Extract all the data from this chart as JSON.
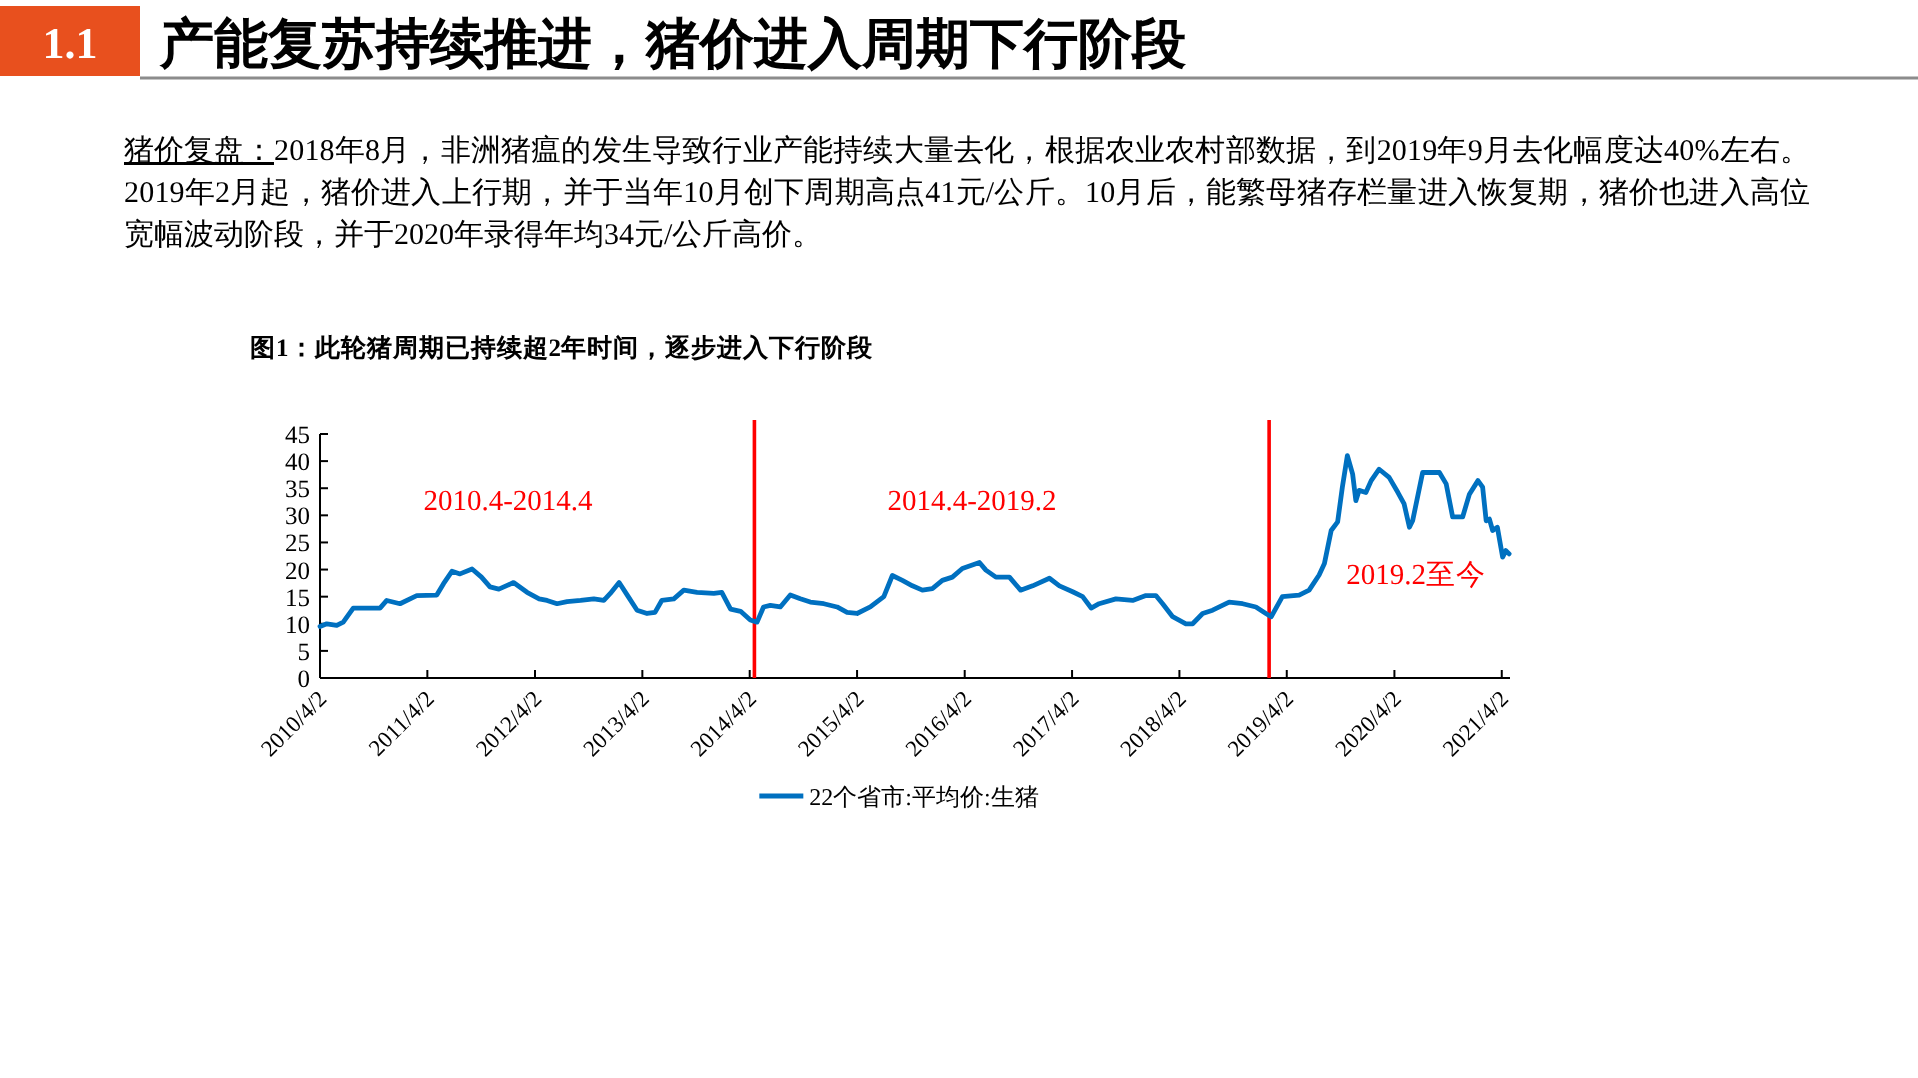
{
  "chart_data": {
    "type": "line",
    "title": "产能复苏持续推进，猪价进入周期下行阶段",
    "subtitle": "图1：此轮猪周期已持续超2年时间，逐步进入下行阶段",
    "annotations": [
      "1.1",
      "猪价复盘：2018年8月，非洲猪瘟的发生导致行业产能持续大量去化，根据农业农村部数据，到2019年9月去化幅度达40%左右。2019年2月起，猪价进入上行期，并于当年10月创下周期高点41元/公斤。10月后，能繁母猪存栏量进入恢复期，猪价也进入高位宽幅波动阶段，并于2020年录得年均34元/公斤高价。",
      "2010.4-2014.4",
      "2014.4-2019.2",
      "2019.2至今"
    ],
    "x": [
      "2010-04-02",
      "2010-04-25",
      "2010-05-29",
      "2010-06-20",
      "2010-07-24",
      "2010-10-23",
      "2010-11-15",
      "2010-12-30",
      "2011-02-25",
      "2011-05-04",
      "2011-05-27",
      "2011-06-25",
      "2011-07-22",
      "2011-09-01",
      "2011-10-03",
      "2011-11-01",
      "2011-12-01",
      "2012-01-20",
      "2012-03-06",
      "2012-04-16",
      "2012-05-13",
      "2012-06-16",
      "2012-07-20",
      "2012-09-04",
      "2012-10-19",
      "2012-11-22",
      "2012-12-14",
      "2013-01-13",
      "2013-02-13",
      "2013-03-15",
      "2013-04-18",
      "2013-05-15",
      "2013-06-07",
      "2013-07-18",
      "2013-08-21",
      "2013-10-05",
      "2013-12-01",
      "2013-12-28",
      "2014-01-27",
      "2014-03-02",
      "2014-04-04",
      "2014-04-27",
      "2014-05-19",
      "2014-06-11",
      "2014-07-15",
      "2014-08-18",
      "2014-09-21",
      "2014-10-25",
      "2014-12-10",
      "2015-01-24",
      "2015-02-27",
      "2015-04-02",
      "2015-05-17",
      "2015-07-02",
      "2015-07-31",
      "2015-09-03",
      "2015-10-07",
      "2015-11-10",
      "2015-12-14",
      "2016-01-17",
      "2016-02-20",
      "2016-03-25",
      "2016-05-22",
      "2016-06-13",
      "2016-07-17",
      "2016-09-01",
      "2016-10-09",
      "2016-11-19",
      "2017-01-15",
      "2017-02-18",
      "2017-04-04",
      "2017-05-08",
      "2017-06-06",
      "2017-07-03",
      "2017-08-29",
      "2017-10-25",
      "2017-12-09",
      "2018-01-12",
      "2018-02-04",
      "2018-03-10",
      "2018-04-24",
      "2018-05-17",
      "2018-06-20",
      "2018-07-24",
      "2018-09-18",
      "2018-11-03",
      "2018-12-18",
      "2019-01-21",
      "2019-02-08",
      "2019-03-18",
      "2019-05-14",
      "2019-06-17",
      "2019-07-21",
      "2019-08-08",
      "2019-08-31",
      "2019-09-22",
      "2019-10-08",
      "2019-10-25",
      "2019-11-12",
      "2019-11-23",
      "2019-12-04",
      "2019-12-27",
      "2020-01-14",
      "2020-02-10",
      "2020-03-15",
      "2020-04-14",
      "2020-05-05",
      "2020-05-23",
      "2020-06-03",
      "2020-07-07",
      "2020-09-02",
      "2020-09-25",
      "2020-10-17",
      "2020-11-20",
      "2020-12-13",
      "2021-01-11",
      "2021-01-27",
      "2021-02-08",
      "2021-02-19",
      "2021-03-02",
      "2021-03-18",
      "2021-04-05",
      "2021-04-16",
      "2021-04-27"
    ],
    "series": [
      {
        "name": "22个省市:平均价:生猪",
        "color": "#0070c0",
        "values": [
          9.5,
          10.0,
          9.7,
          10.3,
          12.9,
          12.9,
          14.3,
          13.7,
          15.2,
          15.3,
          17.4,
          19.7,
          19.2,
          20.1,
          18.6,
          16.8,
          16.4,
          17.6,
          15.8,
          14.6,
          14.3,
          13.7,
          14.1,
          14.3,
          14.6,
          14.3,
          15.6,
          17.6,
          15.0,
          12.5,
          11.9,
          12.1,
          14.3,
          14.6,
          16.2,
          15.8,
          15.6,
          15.8,
          12.7,
          12.3,
          10.7,
          10.3,
          13.1,
          13.4,
          13.1,
          15.3,
          14.6,
          14.0,
          13.7,
          13.1,
          12.1,
          11.9,
          13.1,
          15.0,
          18.9,
          18.0,
          17.0,
          16.2,
          16.5,
          18.0,
          18.6,
          20.2,
          21.3,
          19.9,
          18.6,
          18.6,
          16.2,
          17.0,
          18.4,
          17.0,
          15.9,
          15.0,
          12.9,
          13.7,
          14.6,
          14.3,
          15.2,
          15.2,
          13.7,
          11.3,
          10.0,
          10.0,
          11.9,
          12.5,
          14.0,
          13.7,
          13.1,
          11.9,
          11.3,
          15.0,
          15.3,
          16.2,
          19.0,
          21.1,
          27.2,
          28.8,
          35.2,
          41.0,
          37.6,
          32.7,
          34.6,
          34.2,
          36.4,
          38.5,
          37.0,
          34.2,
          32.1,
          27.8,
          29.0,
          37.9,
          37.9,
          35.8,
          29.7,
          29.7,
          33.9,
          36.4,
          35.2,
          29.0,
          29.3,
          27.2,
          27.8,
          22.3,
          23.5,
          22.9
        ]
      }
    ],
    "xlim": [
      "2010-04-02",
      "2021-04-30"
    ],
    "ylim": [
      0,
      45
    ],
    "xticks": [
      {
        "value": "2010-04-02",
        "label": "2010/4/2"
      },
      {
        "value": "2011-04-02",
        "label": "2011/4/2"
      },
      {
        "value": "2012-04-02",
        "label": "2012/4/2"
      },
      {
        "value": "2013-04-02",
        "label": "2013/4/2"
      },
      {
        "value": "2014-04-02",
        "label": "2014/4/2"
      },
      {
        "value": "2015-04-02",
        "label": "2015/4/2"
      },
      {
        "value": "2016-04-02",
        "label": "2016/4/2"
      },
      {
        "value": "2017-04-02",
        "label": "2017/4/2"
      },
      {
        "value": "2018-04-02",
        "label": "2018/4/2"
      },
      {
        "value": "2019-04-02",
        "label": "2019/4/2"
      },
      {
        "value": "2020-04-02",
        "label": "2020/4/2"
      },
      {
        "value": "2021-04-02",
        "label": "2021/4/2"
      }
    ],
    "yticks": [
      0,
      5,
      10,
      15,
      20,
      25,
      30,
      35,
      40,
      45
    ],
    "ref_lines": [
      {
        "axis": "x",
        "value": "2014-04-18",
        "color": "#ff0000"
      },
      {
        "axis": "x",
        "value": "2019-02-01",
        "color": "#ff0000"
      }
    ],
    "legend": "bottom"
  }
}
